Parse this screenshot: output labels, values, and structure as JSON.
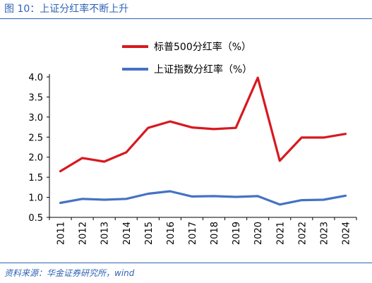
{
  "figure": {
    "title": "图 10：上证分红率不断上升",
    "source": "资料来源：华金证券研究所，wind"
  },
  "chart_data": {
    "type": "line",
    "x": [
      "2011",
      "2012",
      "2013",
      "2014",
      "2015",
      "2016",
      "2017",
      "2018",
      "2019",
      "2020",
      "2021",
      "2022",
      "2023",
      "2024"
    ],
    "series": [
      {
        "name": "标普500分红率（%）",
        "color": "#d7191f",
        "values": [
          1.65,
          1.98,
          1.89,
          2.12,
          2.73,
          2.89,
          2.74,
          2.7,
          2.73,
          3.98,
          1.91,
          2.49,
          2.49,
          2.58
        ]
      },
      {
        "name": "上证指数分红率（%）",
        "color": "#4472c4",
        "values": [
          0.86,
          0.96,
          0.94,
          0.96,
          1.09,
          1.15,
          1.02,
          1.03,
          1.01,
          1.03,
          0.82,
          0.93,
          0.94,
          1.04
        ]
      }
    ],
    "yticks": [
      "4.0",
      "3.5",
      "3.0",
      "2.5",
      "2.0",
      "1.5",
      "1.0",
      "0.5"
    ],
    "ylim": [
      0.5,
      4.0
    ],
    "grid": false,
    "legend_position": "top-center",
    "xlabel": "",
    "ylabel": ""
  }
}
